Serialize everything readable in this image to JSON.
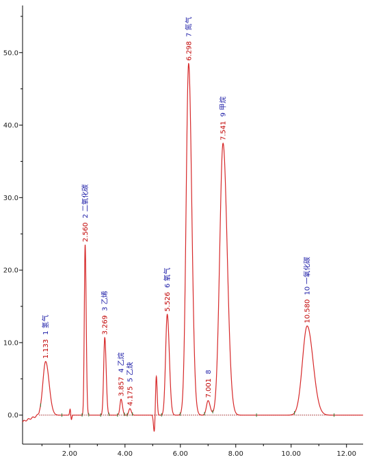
{
  "chart_data": {
    "type": "line",
    "xlim": [
      0.3,
      12.6
    ],
    "ylim": [
      -4.0,
      56.5
    ],
    "x_ticks": [
      2.0,
      4.0,
      6.0,
      8.0,
      10.0,
      12.0
    ],
    "x_tick_labels": [
      "2.00",
      "4.00",
      "6.00",
      "8.00",
      "10.00",
      "12.00"
    ],
    "y_ticks": [
      0,
      10,
      20,
      30,
      40,
      50
    ],
    "y_tick_labels": [
      "0.0",
      "10.0",
      "20.0",
      "30.0",
      "40.0",
      "50.0"
    ],
    "grid": false,
    "colors": {
      "signal": "#d62728",
      "baseline": "#8b0000",
      "retention_label": "#c00000",
      "name_label": "#1a1aa6"
    },
    "peaks": [
      {
        "rt": 1.133,
        "rt_label": "1.133",
        "number": "1",
        "name": "氢气",
        "height": 7.4,
        "sigma": 0.1
      },
      {
        "rt": 2.56,
        "rt_label": "2.560",
        "number": "2",
        "name": "二氧化碳",
        "height": 23.5,
        "sigma": 0.03
      },
      {
        "rt": 3.269,
        "rt_label": "3.269",
        "number": "3",
        "name": "乙烯",
        "height": 10.7,
        "sigma": 0.04
      },
      {
        "rt": 3.857,
        "rt_label": "3.857",
        "number": "4",
        "name": "乙烷",
        "height": 2.2,
        "sigma": 0.04
      },
      {
        "rt": 4.175,
        "rt_label": "4.175",
        "number": "5",
        "name": "乙炔",
        "height": 0.9,
        "sigma": 0.04
      },
      {
        "rt": 5.526,
        "rt_label": "5.526",
        "number": "6",
        "name": "氧气",
        "height": 13.9,
        "sigma": 0.06
      },
      {
        "rt": 6.298,
        "rt_label": "6.298",
        "number": "7",
        "name": "氮气",
        "height": 48.5,
        "sigma": 0.09
      },
      {
        "rt": 7.001,
        "rt_label": "7.001",
        "number": "8",
        "name": "",
        "height": 2.0,
        "sigma": 0.06
      },
      {
        "rt": 7.541,
        "rt_label": "7.541",
        "number": "9",
        "name": "甲烷",
        "height": 37.5,
        "sigma": 0.12
      },
      {
        "rt": 10.58,
        "rt_label": "10.580",
        "number": "10",
        "name": "一氧化碳",
        "height": 12.3,
        "sigma": 0.17
      }
    ],
    "disturbances": [
      {
        "x": 2.02,
        "y": 0.9,
        "sigma": 0.02
      },
      {
        "x": 2.06,
        "y": -0.7,
        "sigma": 0.02
      },
      {
        "x": 5.06,
        "y": -2.5,
        "sigma": 0.03
      },
      {
        "x": 5.13,
        "y": 5.5,
        "sigma": 0.03
      }
    ],
    "integration_markers": [
      0.95,
      1.72,
      2.45,
      2.69,
      3.12,
      3.42,
      3.73,
      3.98,
      4.08,
      4.27,
      5.32,
      5.99,
      6.87,
      7.17,
      8.75,
      10.12,
      11.55
    ]
  }
}
